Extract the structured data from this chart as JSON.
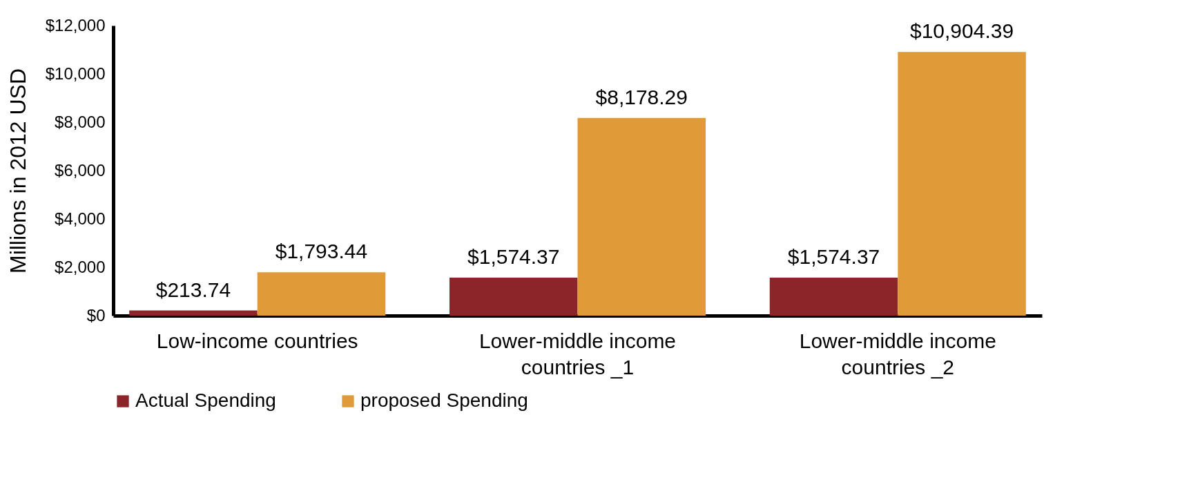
{
  "chart_data": {
    "type": "bar",
    "ylabel": "Millions in 2012 USD",
    "categories": [
      "Low-income countries",
      "Lower-middle income countries _1",
      "Lower-middle income countries _2"
    ],
    "series": [
      {
        "name": "Actual Spending",
        "color": "#8b2529",
        "values": [
          213.74,
          1574.37,
          1574.37
        ],
        "value_labels": [
          "$213.74",
          "$1,574.37",
          "$1,574.37"
        ]
      },
      {
        "name": "proposed Spending",
        "color": "#e09a38",
        "values": [
          1793.44,
          8178.29,
          10904.39
        ],
        "value_labels": [
          "$1,793.44",
          "$8,178.29",
          "$10,904.39"
        ]
      }
    ],
    "ylim": [
      0,
      12000
    ],
    "yticks": [
      {
        "value": 0,
        "label": "$0"
      },
      {
        "value": 2000,
        "label": "$2,000"
      },
      {
        "value": 4000,
        "label": "$4,000"
      },
      {
        "value": 6000,
        "label": "$6,000"
      },
      {
        "value": 8000,
        "label": "$8,000"
      },
      {
        "value": 10000,
        "label": "$10,000"
      },
      {
        "value": 12000,
        "label": "$12,000"
      }
    ],
    "grid": false,
    "legend": "bottom"
  }
}
